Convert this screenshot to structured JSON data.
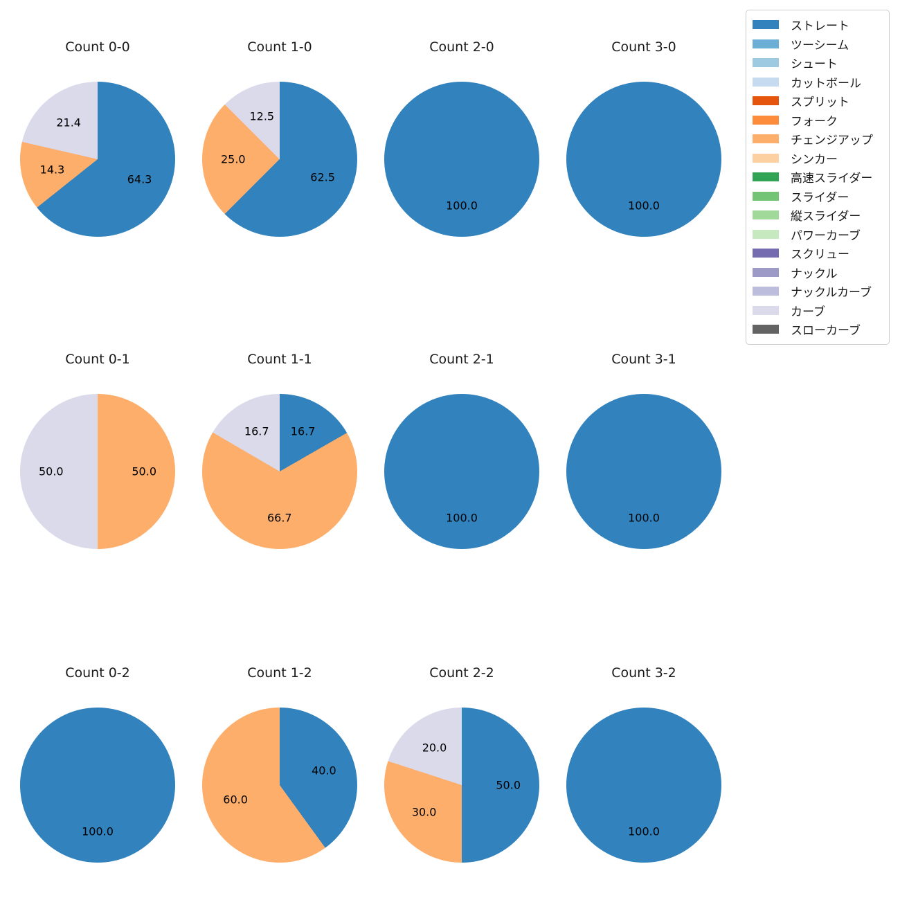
{
  "figure": {
    "background": "#ffffff",
    "text_color": "#1a1a1a",
    "label_color": "#000000"
  },
  "chart_data": {
    "type": "pie",
    "grid": {
      "rows": 3,
      "cols": 4
    },
    "start_angle_deg": 90,
    "direction": "clockwise",
    "label_format": "percent-1dp",
    "pct_distance": 0.6,
    "legend": {
      "position": "upper-right",
      "border_color": "#cccccc",
      "entries": [
        {
          "label": "ストレート",
          "color": "#3182bd"
        },
        {
          "label": "ツーシーム",
          "color": "#6baed6"
        },
        {
          "label": "シュート",
          "color": "#9ecae1"
        },
        {
          "label": "カットボール",
          "color": "#c6dbef"
        },
        {
          "label": "スプリット",
          "color": "#e6550d"
        },
        {
          "label": "フォーク",
          "color": "#fd8d3c"
        },
        {
          "label": "チェンジアップ",
          "color": "#fdae6b"
        },
        {
          "label": "シンカー",
          "color": "#fdd0a2"
        },
        {
          "label": "高速スライダー",
          "color": "#31a354"
        },
        {
          "label": "スライダー",
          "color": "#74c476"
        },
        {
          "label": "縦スライダー",
          "color": "#a1d99b"
        },
        {
          "label": "パワーカーブ",
          "color": "#c7e9c0"
        },
        {
          "label": "スクリュー",
          "color": "#756bb1"
        },
        {
          "label": "ナックル",
          "color": "#9e9ac8"
        },
        {
          "label": "ナックルカーブ",
          "color": "#bcbddc"
        },
        {
          "label": "カーブ",
          "color": "#dadaeb"
        },
        {
          "label": "スローカーブ",
          "color": "#636363"
        }
      ]
    },
    "pies": [
      {
        "title": "Count 0-0",
        "slices": [
          {
            "label": "ストレート",
            "value": 64.3
          },
          {
            "label": "チェンジアップ",
            "value": 14.3
          },
          {
            "label": "カーブ",
            "value": 21.4
          }
        ]
      },
      {
        "title": "Count 1-0",
        "slices": [
          {
            "label": "ストレート",
            "value": 62.5
          },
          {
            "label": "チェンジアップ",
            "value": 25.0
          },
          {
            "label": "カーブ",
            "value": 12.5
          }
        ]
      },
      {
        "title": "Count 2-0",
        "slices": [
          {
            "label": "ストレート",
            "value": 100.0
          }
        ]
      },
      {
        "title": "Count 3-0",
        "slices": [
          {
            "label": "ストレート",
            "value": 100.0
          }
        ]
      },
      {
        "title": "Count 0-1",
        "slices": [
          {
            "label": "チェンジアップ",
            "value": 50.0
          },
          {
            "label": "カーブ",
            "value": 50.0
          }
        ]
      },
      {
        "title": "Count 1-1",
        "slices": [
          {
            "label": "ストレート",
            "value": 16.7
          },
          {
            "label": "チェンジアップ",
            "value": 66.7
          },
          {
            "label": "カーブ",
            "value": 16.7
          }
        ]
      },
      {
        "title": "Count 2-1",
        "slices": [
          {
            "label": "ストレート",
            "value": 100.0
          }
        ]
      },
      {
        "title": "Count 3-1",
        "slices": [
          {
            "label": "ストレート",
            "value": 100.0
          }
        ]
      },
      {
        "title": "Count 0-2",
        "slices": [
          {
            "label": "ストレート",
            "value": 100.0
          }
        ]
      },
      {
        "title": "Count 1-2",
        "slices": [
          {
            "label": "ストレート",
            "value": 40.0
          },
          {
            "label": "チェンジアップ",
            "value": 60.0
          }
        ]
      },
      {
        "title": "Count 2-2",
        "slices": [
          {
            "label": "ストレート",
            "value": 50.0
          },
          {
            "label": "チェンジアップ",
            "value": 30.0
          },
          {
            "label": "カーブ",
            "value": 20.0
          }
        ]
      },
      {
        "title": "Count 3-2",
        "slices": [
          {
            "label": "ストレート",
            "value": 100.0
          }
        ]
      }
    ]
  }
}
